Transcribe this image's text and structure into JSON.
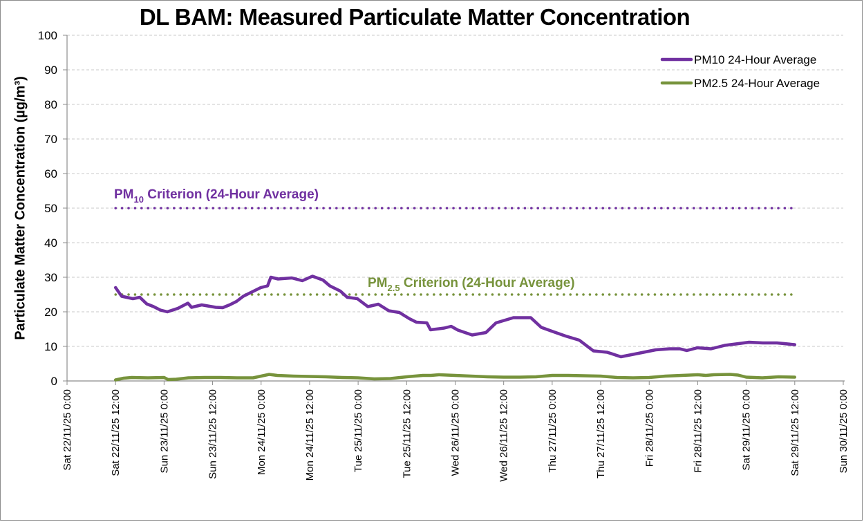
{
  "chart_data": {
    "type": "line",
    "title": "DL BAM: Measured Particulate Matter Concentration",
    "xlabel": "",
    "ylabel": "Particulate Matter Concentration (µg/m³)",
    "ylim": [
      0,
      100
    ],
    "yticks": [
      0,
      10,
      20,
      30,
      40,
      50,
      60,
      70,
      80,
      90,
      100
    ],
    "xlim_hours": [
      0,
      192
    ],
    "x_origin": "Sat 22/11/25 0:00",
    "xticks": [
      {
        "hour": 0,
        "label": "Sat 22/11/25 0:00"
      },
      {
        "hour": 12,
        "label": "Sat 22/11/25 12:00"
      },
      {
        "hour": 24,
        "label": "Sun 23/11/25 0:00"
      },
      {
        "hour": 36,
        "label": "Sun 23/11/25 12:00"
      },
      {
        "hour": 48,
        "label": "Mon 24/11/25 0:00"
      },
      {
        "hour": 60,
        "label": "Mon 24/11/25 12:00"
      },
      {
        "hour": 72,
        "label": "Tue 25/11/25 0:00"
      },
      {
        "hour": 84,
        "label": "Tue 25/11/25 12:00"
      },
      {
        "hour": 96,
        "label": "Wed 26/11/25 0:00"
      },
      {
        "hour": 108,
        "label": "Wed 26/11/25 12:00"
      },
      {
        "hour": 120,
        "label": "Thu 27/11/25 0:00"
      },
      {
        "hour": 132,
        "label": "Thu 27/11/25 12:00"
      },
      {
        "hour": 144,
        "label": "Fri 28/11/25 0:00"
      },
      {
        "hour": 156,
        "label": "Fri 28/11/25 12:00"
      },
      {
        "hour": 168,
        "label": "Sat 29/11/25 0:00"
      },
      {
        "hour": 180,
        "label": "Sat 29/11/25 12:00"
      },
      {
        "hour": 192,
        "label": "Sun 30/11/25 0:00"
      }
    ],
    "grid": true,
    "legend_position": "top-right",
    "series": [
      {
        "name": "PM10 24-Hour Average",
        "color": "#7030a0",
        "x_hours": [
          12,
          13.5,
          16.3,
          18,
          19.7,
          21.4,
          23.1,
          24.8,
          27.4,
          29.9,
          30.8,
          33.3,
          36.8,
          38.5,
          40.2,
          41.9,
          43.6,
          45.3,
          47.9,
          49.6,
          50.4,
          52.2,
          55.6,
          58.2,
          60.7,
          63.3,
          65,
          67.6,
          69.3,
          71.8,
          74.4,
          77,
          79.6,
          82.2,
          84.7,
          86.4,
          89,
          89.9,
          93.3,
          95,
          96.7,
          100.2,
          103.6,
          106.1,
          110.4,
          114.7,
          117.3,
          119.9,
          123.3,
          126.7,
          130.2,
          133.6,
          137,
          142.2,
          145.6,
          149,
          151.6,
          153.3,
          155.9,
          159.3,
          162.7,
          166.1,
          168.7,
          172.1,
          175.6,
          180
        ],
        "values": [
          27,
          24.5,
          23.8,
          24.2,
          22.3,
          21.5,
          20.5,
          20,
          21,
          22.5,
          21.3,
          22,
          21.3,
          21.2,
          22,
          23,
          24.5,
          25.5,
          27,
          27.5,
          30,
          29.5,
          29.8,
          29,
          30.3,
          29.2,
          27.5,
          26,
          24.2,
          23.8,
          21.5,
          22.2,
          20.3,
          19.8,
          18,
          17,
          16.8,
          14.8,
          15.3,
          15.8,
          14.7,
          13.3,
          14,
          16.8,
          18.3,
          18.3,
          15.5,
          14.4,
          13,
          11.8,
          8.7,
          8.3,
          7,
          8.2,
          9,
          9.3,
          9.3,
          8.8,
          9.6,
          9.3,
          10.3,
          10.8,
          11.2,
          11,
          11,
          10.5
        ]
      },
      {
        "name": "PM2.5 24-Hour Average",
        "color": "#77933c",
        "x_hours": [
          12,
          14,
          16,
          20,
          24,
          25,
          27,
          30,
          34,
          38,
          42,
          46,
          48,
          50,
          52,
          56,
          60,
          64,
          68,
          72,
          76,
          80,
          84,
          88,
          90,
          92,
          96,
          100,
          104,
          108,
          112,
          116,
          120,
          124,
          128,
          132,
          136,
          140,
          144,
          148,
          152,
          156,
          158,
          160,
          164,
          166,
          168,
          172,
          176,
          180
        ],
        "values": [
          0.3,
          0.8,
          1.0,
          0.9,
          1.0,
          0.4,
          0.5,
          0.9,
          1.0,
          1.0,
          0.9,
          0.9,
          1.4,
          1.9,
          1.6,
          1.4,
          1.3,
          1.2,
          1.0,
          0.9,
          0.6,
          0.7,
          1.2,
          1.6,
          1.6,
          1.8,
          1.6,
          1.4,
          1.2,
          1.1,
          1.1,
          1.2,
          1.6,
          1.6,
          1.5,
          1.4,
          1.0,
          0.9,
          1.0,
          1.4,
          1.6,
          1.8,
          1.6,
          1.8,
          1.9,
          1.7,
          1.1,
          0.9,
          1.2,
          1.1
        ]
      }
    ],
    "reference_lines": [
      {
        "name": "PM10 Criterion (24-Hour Average)",
        "label_main": "PM",
        "label_sub": "10",
        "label_rest": " Criterion (24-Hour Average)",
        "value": 50,
        "color": "#7030a0",
        "x_hours": [
          12,
          180
        ]
      },
      {
        "name": "PM2.5 Criterion (24-Hour Average)",
        "label_main": "PM",
        "label_sub": "2.5",
        "label_rest": " Criterion (24-Hour Average)",
        "value": 25,
        "color": "#77933c",
        "x_hours": [
          12,
          180
        ]
      }
    ]
  }
}
